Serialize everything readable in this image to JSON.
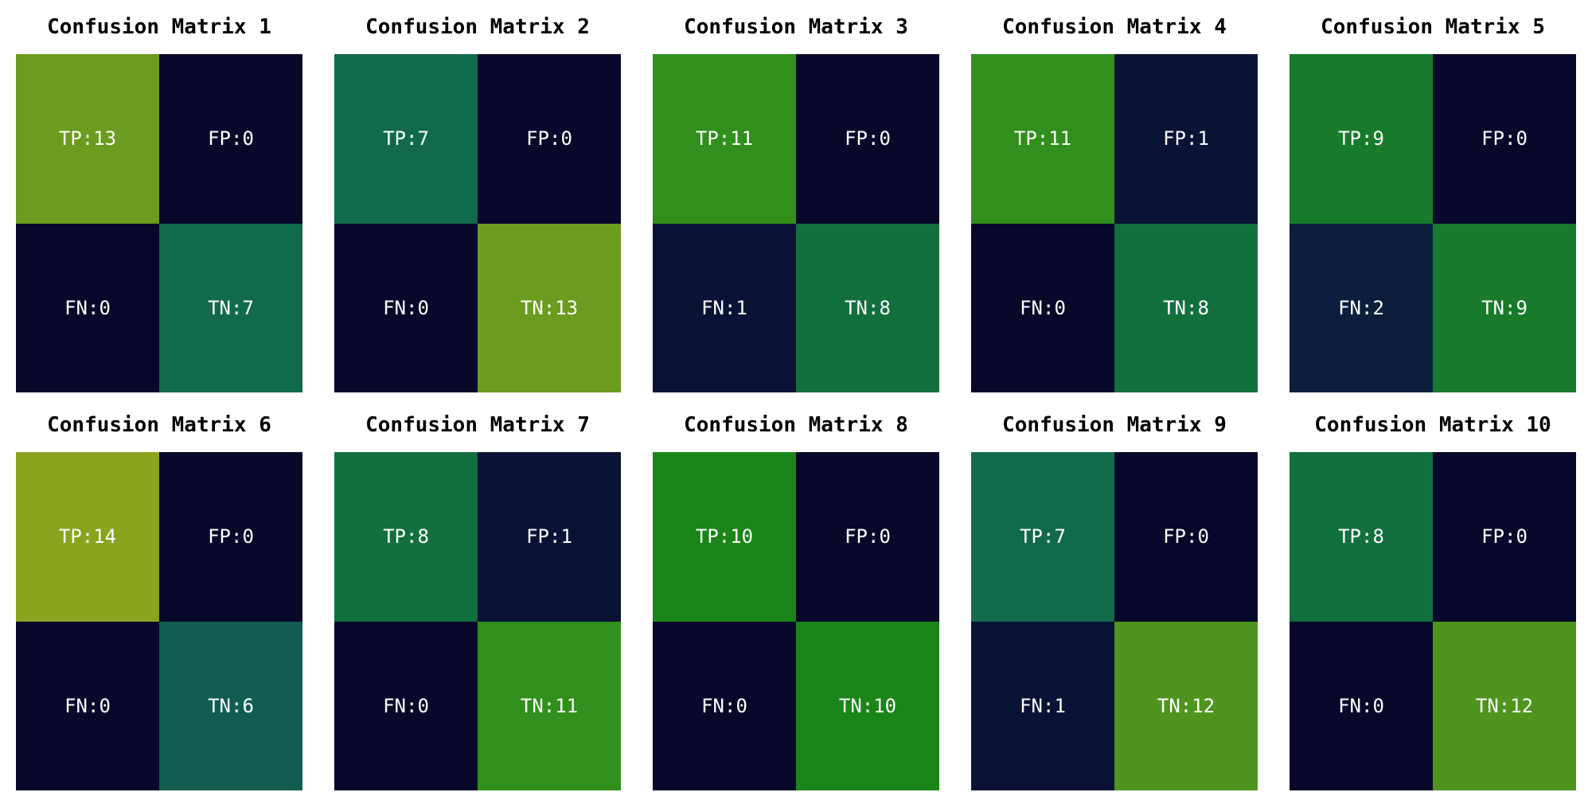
{
  "chart_data": {
    "type": "heatmap",
    "colors": {
      "label_text": "#ffffff",
      "title_text": "#000000",
      "background": "#ffffff"
    },
    "cell_labels": [
      "TP",
      "FP",
      "FN",
      "TN"
    ],
    "matrices": [
      {
        "title": "Confusion Matrix 1",
        "values": {
          "TP": 13,
          "FP": 0,
          "FN": 0,
          "TN": 7
        },
        "cells": [
          {
            "key": "TP",
            "label": "TP:13",
            "color": "#6b9b1f"
          },
          {
            "key": "FP",
            "label": "FP:0",
            "color": "#08082a"
          },
          {
            "key": "FN",
            "label": "FN:0",
            "color": "#08082a"
          },
          {
            "key": "TN",
            "label": "TN:7",
            "color": "#116b4b"
          }
        ]
      },
      {
        "title": "Confusion Matrix 2",
        "values": {
          "TP": 7,
          "FP": 0,
          "FN": 0,
          "TN": 13
        },
        "cells": [
          {
            "key": "TP",
            "label": "TP:7",
            "color": "#116b4b"
          },
          {
            "key": "FP",
            "label": "FP:0",
            "color": "#08082a"
          },
          {
            "key": "FN",
            "label": "FN:0",
            "color": "#08082a"
          },
          {
            "key": "TN",
            "label": "TN:13",
            "color": "#6b9b1f"
          }
        ]
      },
      {
        "title": "Confusion Matrix 3",
        "values": {
          "TP": 11,
          "FP": 0,
          "FN": 1,
          "TN": 8
        },
        "cells": [
          {
            "key": "TP",
            "label": "TP:11",
            "color": "#318f1b"
          },
          {
            "key": "FP",
            "label": "FP:0",
            "color": "#08082a"
          },
          {
            "key": "FN",
            "label": "FN:1",
            "color": "#0a1335"
          },
          {
            "key": "TN",
            "label": "TN:8",
            "color": "#126f3e"
          }
        ]
      },
      {
        "title": "Confusion Matrix 4",
        "values": {
          "TP": 11,
          "FP": 1,
          "FN": 0,
          "TN": 8
        },
        "cells": [
          {
            "key": "TP",
            "label": "TP:11",
            "color": "#318f1b"
          },
          {
            "key": "FP",
            "label": "FP:1",
            "color": "#0a1335"
          },
          {
            "key": "FN",
            "label": "FN:0",
            "color": "#08082a"
          },
          {
            "key": "TN",
            "label": "TN:8",
            "color": "#126f3e"
          }
        ]
      },
      {
        "title": "Confusion Matrix 5",
        "values": {
          "TP": 9,
          "FP": 0,
          "FN": 2,
          "TN": 9
        },
        "cells": [
          {
            "key": "TP",
            "label": "TP:9",
            "color": "#177b2b"
          },
          {
            "key": "FP",
            "label": "FP:0",
            "color": "#08082a"
          },
          {
            "key": "FN",
            "label": "FN:2",
            "color": "#0c1e3c"
          },
          {
            "key": "TN",
            "label": "TN:9",
            "color": "#177b2b"
          }
        ]
      },
      {
        "title": "Confusion Matrix 6",
        "values": {
          "TP": 14,
          "FP": 0,
          "FN": 0,
          "TN": 6
        },
        "cells": [
          {
            "key": "TP",
            "label": "TP:14",
            "color": "#8aa41f"
          },
          {
            "key": "FP",
            "label": "FP:0",
            "color": "#08082a"
          },
          {
            "key": "FN",
            "label": "FN:0",
            "color": "#08082a"
          },
          {
            "key": "TN",
            "label": "TN:6",
            "color": "#115e51"
          }
        ]
      },
      {
        "title": "Confusion Matrix 7",
        "values": {
          "TP": 8,
          "FP": 1,
          "FN": 0,
          "TN": 11
        },
        "cells": [
          {
            "key": "TP",
            "label": "TP:8",
            "color": "#126f3e"
          },
          {
            "key": "FP",
            "label": "FP:1",
            "color": "#0a1335"
          },
          {
            "key": "FN",
            "label": "FN:0",
            "color": "#08082a"
          },
          {
            "key": "TN",
            "label": "TN:11",
            "color": "#318f1b"
          }
        ]
      },
      {
        "title": "Confusion Matrix 8",
        "values": {
          "TP": 10,
          "FP": 0,
          "FN": 0,
          "TN": 10
        },
        "cells": [
          {
            "key": "TP",
            "label": "TP:10",
            "color": "#1a8518"
          },
          {
            "key": "FP",
            "label": "FP:0",
            "color": "#08082a"
          },
          {
            "key": "FN",
            "label": "FN:0",
            "color": "#08082a"
          },
          {
            "key": "TN",
            "label": "TN:10",
            "color": "#1a8518"
          }
        ]
      },
      {
        "title": "Confusion Matrix 9",
        "values": {
          "TP": 7,
          "FP": 0,
          "FN": 1,
          "TN": 12
        },
        "cells": [
          {
            "key": "TP",
            "label": "TP:7",
            "color": "#116b4b"
          },
          {
            "key": "FP",
            "label": "FP:0",
            "color": "#08082a"
          },
          {
            "key": "FN",
            "label": "FN:1",
            "color": "#0a1335"
          },
          {
            "key": "TN",
            "label": "TN:12",
            "color": "#4f951d"
          }
        ]
      },
      {
        "title": "Confusion Matrix 10",
        "values": {
          "TP": 8,
          "FP": 0,
          "FN": 0,
          "TN": 12
        },
        "cells": [
          {
            "key": "TP",
            "label": "TP:8",
            "color": "#126f3e"
          },
          {
            "key": "FP",
            "label": "FP:0",
            "color": "#08082a"
          },
          {
            "key": "FN",
            "label": "FN:0",
            "color": "#08082a"
          },
          {
            "key": "TN",
            "label": "TN:12",
            "color": "#4f951d"
          }
        ]
      }
    ]
  }
}
